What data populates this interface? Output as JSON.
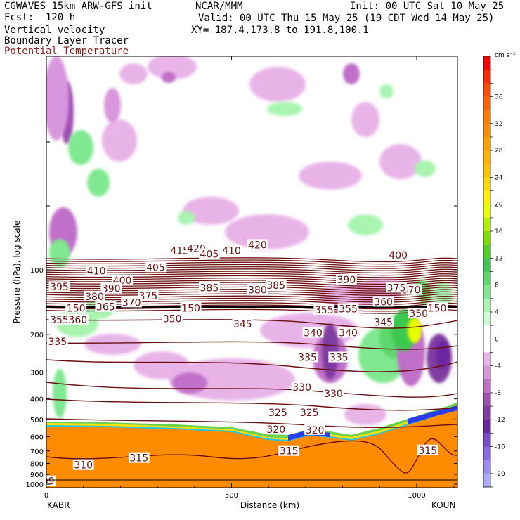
{
  "header": {
    "model": "CGWAVES 15km ARW-GFS init",
    "org": "NCAR/MMM",
    "init": "Init: 00 UTC Sat 10 May 25",
    "fcst": "Fcst:  120 h",
    "valid": "Valid: 00 UTC Thu 15 May 25 (19 CDT Wed 14 May 25)",
    "field1": "Vertical velocity",
    "xy": "XY= 187.4,173.8 to 191.8,100.1",
    "field2": "Boundary Layer Tracer",
    "field3": "Potential Temperature"
  },
  "chart_data": {
    "type": "heatmap",
    "xlabel": "Distance (km)",
    "ylabel": "Pressure (hPa), log scale",
    "x_ticks": [
      0,
      500,
      1000
    ],
    "y_ticks": [
      100,
      200,
      300,
      400,
      500,
      600,
      700,
      800,
      900,
      1000
    ],
    "endpoints": {
      "left": "KABR",
      "right": "KOUN"
    },
    "colorbar": {
      "units": "cm s⁻¹",
      "tick_labels": [
        "36",
        "32",
        "28",
        "24",
        "20",
        "16",
        "12",
        "8",
        "4",
        "0",
        "-4",
        "-8",
        "-12",
        "-16",
        "-20"
      ],
      "levels": [
        40,
        38,
        36,
        34,
        32,
        30,
        28,
        26,
        24,
        22,
        20,
        18,
        16,
        14,
        12,
        10,
        8,
        6,
        4,
        2,
        0,
        -2,
        -4,
        -6,
        -8,
        -10,
        -12,
        -14,
        -16,
        -18,
        -20,
        -22
      ],
      "colors": [
        "#ff0000",
        "#ff2a00",
        "#ff4a00",
        "#ff6400",
        "#ff7a00",
        "#ff8c00",
        "#ffa000",
        "#ffb200",
        "#ffc400",
        "#ffd800",
        "#ffee00",
        "#e8ff00",
        "#b4f000",
        "#7ee000",
        "#50d020",
        "#3cc850",
        "#5cd86c",
        "#80e890",
        "#a8f4b0",
        "#ccfad2",
        "#ffffff",
        "#ffffff",
        "#e8b4e8",
        "#d896dc",
        "#c070c8",
        "#a050b4",
        "#803ca0",
        "#6a28a0",
        "#7a4ad0",
        "#8a6ae8",
        "#9c8cf4",
        "#b0acfc"
      ]
    },
    "theta_labels": [
      {
        "v": "415",
        "x": 360,
        "p": 82
      },
      {
        "v": "420",
        "x": 405,
        "p": 80
      },
      {
        "v": "405",
        "x": 440,
        "p": 85
      },
      {
        "v": "410",
        "x": 500,
        "p": 82
      },
      {
        "v": "420",
        "x": 570,
        "p": 77
      },
      {
        "v": "400",
        "x": 950,
        "p": 86
      },
      {
        "v": "410",
        "x": 135,
        "p": 102
      },
      {
        "v": "405",
        "x": 295,
        "p": 98
      },
      {
        "v": "400",
        "x": 205,
        "p": 113
      },
      {
        "v": "395",
        "x": 35,
        "p": 121
      },
      {
        "v": "390",
        "x": 175,
        "p": 123
      },
      {
        "v": "385",
        "x": 440,
        "p": 122
      },
      {
        "v": "380",
        "x": 570,
        "p": 125
      },
      {
        "v": "385",
        "x": 620,
        "p": 119
      },
      {
        "v": "390",
        "x": 810,
        "p": 112
      },
      {
        "v": "380",
        "x": 130,
        "p": 134
      },
      {
        "v": "375",
        "x": 275,
        "p": 133
      },
      {
        "v": "370",
        "x": 985,
        "p": 125
      },
      {
        "v": "375",
        "x": 945,
        "p": 122
      },
      {
        "v": "370",
        "x": 230,
        "p": 143
      },
      {
        "v": "365",
        "x": 160,
        "p": 150
      },
      {
        "v": "360",
        "x": 910,
        "p": 142
      },
      {
        "v": "355",
        "x": 35,
        "p": 172
      },
      {
        "v": "360",
        "x": 85,
        "p": 172
      },
      {
        "v": "350",
        "x": 340,
        "p": 170
      },
      {
        "v": "350",
        "x": 1005,
        "p": 161
      },
      {
        "v": "345",
        "x": 530,
        "p": 180
      },
      {
        "v": "345",
        "x": 910,
        "p": 177
      },
      {
        "v": "340",
        "x": 720,
        "p": 198
      },
      {
        "v": "340",
        "x": 815,
        "p": 198
      },
      {
        "v": "335",
        "x": 30,
        "p": 218
      },
      {
        "v": "335",
        "x": 705,
        "p": 258
      },
      {
        "v": "335",
        "x": 790,
        "p": 258
      },
      {
        "v": "330",
        "x": 690,
        "p": 356
      },
      {
        "v": "330",
        "x": 775,
        "p": 380
      },
      {
        "v": "325",
        "x": 625,
        "p": 467
      },
      {
        "v": "325",
        "x": 710,
        "p": 467
      },
      {
        "v": "320",
        "x": 620,
        "p": 560
      },
      {
        "v": "320",
        "x": 725,
        "p": 563
      },
      {
        "v": "315",
        "x": 655,
        "p": 705
      },
      {
        "v": "315",
        "x": 1030,
        "p": 700
      },
      {
        "v": "315",
        "x": 250,
        "p": 760
      },
      {
        "v": "310",
        "x": 100,
        "p": 820
      },
      {
        "v": "09",
        "x": 5,
        "p": 975
      },
      {
        "v": "150",
        "x": 80,
        "p": 152
      },
      {
        "v": "150",
        "x": 390,
        "p": 152
      },
      {
        "v": "150",
        "x": 1055,
        "p": 152
      },
      {
        "v": "355",
        "x": 750,
        "p": 155
      },
      {
        "v": "355",
        "x": 815,
        "p": 153
      }
    ]
  }
}
